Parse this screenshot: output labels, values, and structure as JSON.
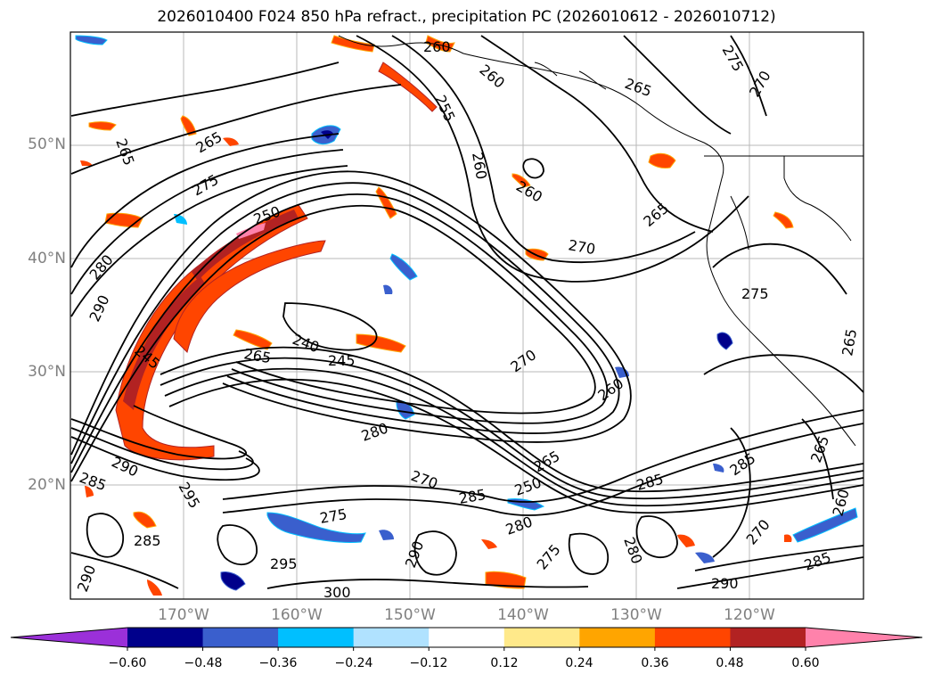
{
  "title": "2026010400 F024 850 hPa refract., precipitation PC (2026010612 - 2026010712)",
  "lat_labels": [
    "50°N",
    "40°N",
    "30°N",
    "20°N"
  ],
  "lon_labels": [
    "170°W",
    "160°W",
    "150°W",
    "140°W",
    "130°W",
    "120°W"
  ],
  "colorbar": {
    "ticks": [
      "−0.60",
      "−0.48",
      "−0.36",
      "−0.24",
      "−0.12",
      "0.12",
      "0.24",
      "0.36",
      "0.48",
      "0.60"
    ],
    "colors": [
      "#9b30d9",
      "#00008b",
      "#3a5fcd",
      "#00bfff",
      "#b0e2ff",
      "#ffffff",
      "#ffe98a",
      "#ffa500",
      "#ff4500",
      "#b22222",
      "#ff82ab"
    ],
    "extend": "both"
  },
  "contour_labels": [
    "260",
    "260",
    "275",
    "270",
    "265",
    "265",
    "265",
    "255",
    "260",
    "260",
    "275",
    "265",
    "250",
    "270",
    "280",
    "290",
    "245",
    "240",
    "245",
    "265",
    "270",
    "260",
    "280",
    "285",
    "290",
    "285",
    "295",
    "270",
    "250",
    "265",
    "285",
    "275",
    "285",
    "280",
    "275",
    "280",
    "290",
    "295",
    "300",
    "285",
    "265",
    "260",
    "270",
    "290",
    "285",
    "290",
    "265",
    "275"
  ],
  "map": {
    "projection": "latitude-longitude",
    "lon_range": [
      -179,
      -109
    ],
    "lat_range": [
      10,
      60
    ],
    "gridlines": true,
    "coastlines": true
  }
}
